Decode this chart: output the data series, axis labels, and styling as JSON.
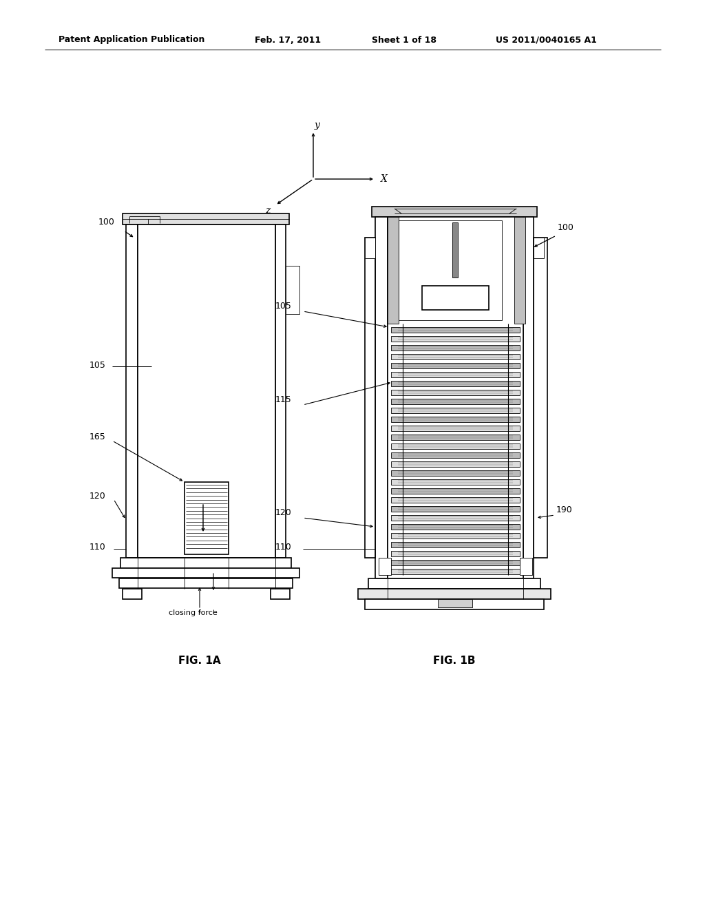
{
  "background_color": "#ffffff",
  "header_text": "Patent Application Publication",
  "header_date": "Feb. 17, 2011",
  "header_sheet": "Sheet 1 of 18",
  "header_patent": "US 2011/0040165 A1",
  "fig1a_label": "FIG. 1A",
  "fig1b_label": "FIG. 1B",
  "line_color": "#000000",
  "lw_heavy": 1.8,
  "lw_med": 1.2,
  "lw_thin": 0.6
}
